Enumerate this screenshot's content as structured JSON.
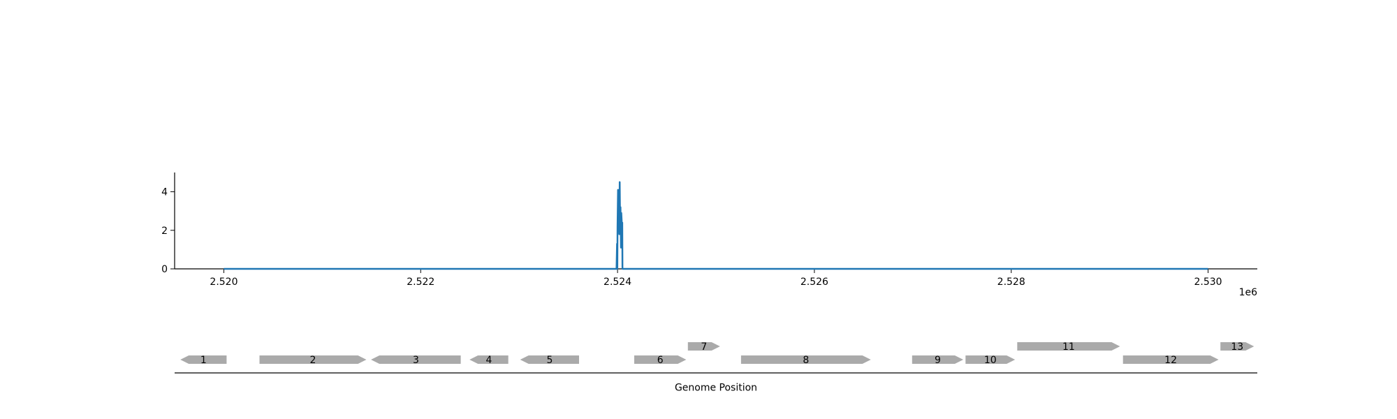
{
  "chart_data": [
    {
      "type": "line",
      "title": "",
      "xlabel": "",
      "ylabel": "",
      "x_offset_label": "1e6",
      "xlim": [
        2.5195,
        2.5305
      ],
      "ylim": [
        0,
        5
      ],
      "x_ticks": [
        2.52,
        2.522,
        2.524,
        2.526,
        2.528,
        2.53
      ],
      "x_tick_labels": [
        "2.520",
        "2.522",
        "2.524",
        "2.526",
        "2.528",
        "2.530"
      ],
      "y_ticks": [
        0,
        2,
        4
      ],
      "y_tick_labels": [
        "0",
        "2",
        "4"
      ],
      "grid": false,
      "line_color": "#1f77b4",
      "series": [
        {
          "x": [
            2.52,
            2.52399,
            2.523995,
            2.523998,
            2.524,
            2.524005,
            2.524012,
            2.524018,
            2.524022,
            2.524026,
            2.52403,
            2.524035,
            2.524038,
            2.524042,
            2.524045,
            2.524048,
            2.52405,
            2.53
          ],
          "y": [
            0,
            0,
            1.3,
            0,
            2.2,
            4.1,
            3.6,
            1.8,
            4.5,
            2.4,
            3.2,
            1.1,
            2.9,
            2.5,
            1.6,
            2.4,
            0,
            0
          ]
        }
      ]
    },
    {
      "type": "gene_track",
      "xlabel": "Genome Position",
      "feature_color": "#aaaaaa",
      "features": [
        {
          "label": "1",
          "start": 2.519558,
          "end": 2.520028,
          "strand": "-",
          "row": 0
        },
        {
          "label": "2",
          "start": 2.520362,
          "end": 2.521448,
          "strand": "+",
          "row": 0
        },
        {
          "label": "3",
          "start": 2.521495,
          "end": 2.522407,
          "strand": "-",
          "row": 0
        },
        {
          "label": "4",
          "start": 2.522496,
          "end": 2.52289,
          "strand": "-",
          "row": 0
        },
        {
          "label": "5",
          "start": 2.523011,
          "end": 2.523609,
          "strand": "-",
          "row": 0
        },
        {
          "label": "6",
          "start": 2.52417,
          "end": 2.524698,
          "strand": "+",
          "row": 0
        },
        {
          "label": "7",
          "start": 2.524715,
          "end": 2.525041,
          "strand": "+",
          "row": 1
        },
        {
          "label": "8",
          "start": 2.525255,
          "end": 2.526573,
          "strand": "+",
          "row": 0
        },
        {
          "label": "9",
          "start": 2.526993,
          "end": 2.527512,
          "strand": "+",
          "row": 0
        },
        {
          "label": "10",
          "start": 2.527536,
          "end": 2.528039,
          "strand": "+",
          "row": 0
        },
        {
          "label": "11",
          "start": 2.528061,
          "end": 2.529105,
          "strand": "+",
          "row": 1
        },
        {
          "label": "12",
          "start": 2.529135,
          "end": 2.530107,
          "strand": "+",
          "row": 0
        },
        {
          "label": "13",
          "start": 2.530125,
          "end": 2.530467,
          "strand": "+",
          "row": 1
        }
      ]
    }
  ]
}
